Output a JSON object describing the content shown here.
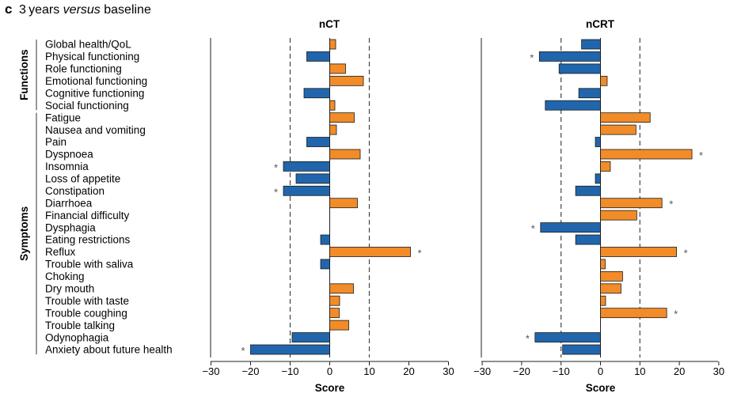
{
  "figure": {
    "panel_letter": "c",
    "title_prefix": "3 years ",
    "title_italic": "versus",
    "title_suffix": " baseline",
    "groups": [
      "Functions",
      "Symptoms"
    ],
    "colors": {
      "positive": "#f28c28",
      "negative": "#2166ac",
      "bar_edge": "#1a1a1a"
    }
  },
  "chart_data": [
    {
      "type": "bar",
      "orientation": "horizontal",
      "title": "nCT",
      "xlabel": "Score",
      "xlim": [
        -30,
        30
      ],
      "xticks": [
        "−30",
        "−20",
        "−10",
        "0",
        "10",
        "20",
        "30"
      ],
      "reference_lines": [
        -10,
        10
      ],
      "categories": [
        "Global health/QoL",
        "Physical functioning",
        "Role functioning",
        "Emotional functioning",
        "Cognitive functioning",
        "Social functioning",
        "Fatigue",
        "Nausea and vomiting",
        "Pain",
        "Dyspnoea",
        "Insomnia",
        "Loss of appetite",
        "Constipation",
        "Diarrhoea",
        "Financial difficulty",
        "Dysphagia",
        "Eating restrictions",
        "Reflux",
        "Trouble with saliva",
        "Choking",
        "Dry mouth",
        "Trouble with taste",
        "Trouble coughing",
        "Trouble talking",
        "Odynophagia",
        "Anxiety about future health"
      ],
      "values": [
        1.5,
        -5.8,
        4.0,
        8.5,
        -6.5,
        1.3,
        6.2,
        1.7,
        -5.8,
        7.7,
        -11.7,
        -8.5,
        -11.7,
        7.0,
        0,
        0,
        -2.3,
        20.4,
        -2.3,
        0,
        6.0,
        2.5,
        2.4,
        4.8,
        -9.5,
        -20.0
      ],
      "significant": [
        false,
        false,
        false,
        false,
        false,
        false,
        false,
        false,
        false,
        false,
        true,
        false,
        true,
        false,
        false,
        false,
        false,
        true,
        false,
        false,
        false,
        false,
        false,
        false,
        false,
        true
      ],
      "sig_marker": "*"
    },
    {
      "type": "bar",
      "orientation": "horizontal",
      "title": "nCRT",
      "xlabel": "Score",
      "xlim": [
        -30,
        30
      ],
      "xticks": [
        "−30",
        "−20",
        "−10",
        "0",
        "10",
        "20",
        "30"
      ],
      "reference_lines": [
        -10,
        10
      ],
      "categories": [
        "Global health/QoL",
        "Physical functioning",
        "Role functioning",
        "Emotional functioning",
        "Cognitive functioning",
        "Social functioning",
        "Fatigue",
        "Nausea and vomiting",
        "Pain",
        "Dyspnoea",
        "Insomnia",
        "Loss of appetite",
        "Constipation",
        "Diarrhoea",
        "Financial difficulty",
        "Dysphagia",
        "Eating restrictions",
        "Reflux",
        "Trouble with saliva",
        "Choking",
        "Dry mouth",
        "Trouble with taste",
        "Trouble coughing",
        "Trouble talking",
        "Odynophagia",
        "Anxiety about future health"
      ],
      "values": [
        -4.8,
        -15.5,
        -10.5,
        1.7,
        -5.5,
        -14.0,
        12.6,
        9.0,
        -1.3,
        23.2,
        2.5,
        -1.3,
        -6.3,
        15.6,
        9.2,
        -15.2,
        -6.3,
        19.3,
        1.2,
        5.6,
        5.2,
        1.3,
        16.8,
        0,
        -16.6,
        -9.6
      ],
      "significant": [
        false,
        true,
        false,
        false,
        false,
        false,
        false,
        false,
        false,
        true,
        false,
        false,
        false,
        true,
        false,
        true,
        false,
        true,
        false,
        false,
        false,
        false,
        true,
        false,
        true,
        false
      ],
      "sig_marker": "*"
    }
  ]
}
